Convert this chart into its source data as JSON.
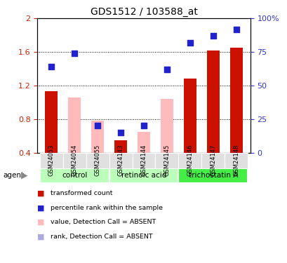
{
  "title": "GDS1512 / 103588_at",
  "samples": [
    "GSM24053",
    "GSM24054",
    "GSM24055",
    "GSM24143",
    "GSM24144",
    "GSM24145",
    "GSM24146",
    "GSM24147",
    "GSM24148"
  ],
  "group_configs": [
    {
      "start": 0,
      "end": 2,
      "label": "control",
      "color": "#bbffbb"
    },
    {
      "start": 3,
      "end": 5,
      "label": "retinoic acid",
      "color": "#bbffbb"
    },
    {
      "start": 6,
      "end": 8,
      "label": "trichostatin A",
      "color": "#44ee44"
    }
  ],
  "red_bars": [
    1.13,
    null,
    null,
    0.55,
    null,
    null,
    1.28,
    1.62,
    1.65
  ],
  "pink_bars": [
    null,
    1.06,
    0.78,
    null,
    0.65,
    1.04,
    null,
    null,
    null
  ],
  "blue_squares": [
    0.64,
    0.74,
    0.2,
    0.15,
    0.2,
    0.62,
    0.82,
    0.87,
    0.92
  ],
  "light_blue_squares": [
    null,
    null,
    0.2,
    null,
    0.2,
    0.62,
    null,
    null,
    null
  ],
  "left_ylim": [
    0.4,
    2.0
  ],
  "left_yticks": [
    0.4,
    0.8,
    1.2,
    1.6,
    2.0
  ],
  "left_yticklabels": [
    "0.4",
    "0.8",
    "1.2",
    "1.6",
    "2"
  ],
  "right_ylim": [
    0.0,
    1.0
  ],
  "right_yticks": [
    0.0,
    0.25,
    0.5,
    0.75,
    1.0
  ],
  "right_yticklabels": [
    "0",
    "25",
    "50",
    "75",
    "100%"
  ],
  "left_tick_color": "#cc2200",
  "right_tick_color": "#3333cc",
  "bar_bottom": 0.4,
  "red_color": "#cc1100",
  "pink_color": "#ffbbbb",
  "blue_color": "#2222cc",
  "light_blue_color": "#aaaadd",
  "grid_lines": [
    0.8,
    1.2,
    1.6
  ],
  "legend_items": [
    {
      "color": "#cc1100",
      "label": "transformed count"
    },
    {
      "color": "#2222cc",
      "label": "percentile rank within the sample"
    },
    {
      "color": "#ffbbbb",
      "label": "value, Detection Call = ABSENT"
    },
    {
      "color": "#aaaadd",
      "label": "rank, Detection Call = ABSENT"
    }
  ]
}
